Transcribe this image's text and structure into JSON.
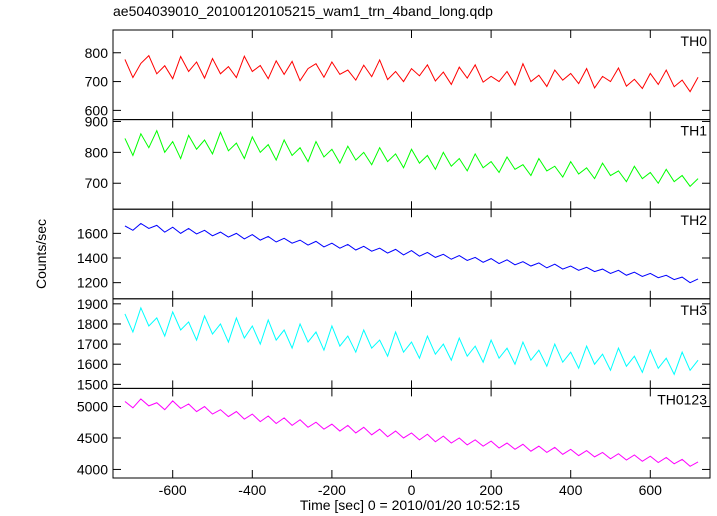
{
  "chart_data": {
    "type": "line",
    "title": "ae504039010_20100120105215_wam1_trn_4band_long.qdp",
    "x_label": "Time [sec] 0 = 2010/01/20 10:52:15",
    "y_label": "Counts/sec",
    "xlim": [
      -750,
      750
    ],
    "xticks": [
      -600,
      -400,
      -200,
      0,
      200,
      400,
      600
    ],
    "x": [
      -720,
      -700,
      -680,
      -660,
      -640,
      -620,
      -600,
      -580,
      -560,
      -540,
      -520,
      -500,
      -480,
      -460,
      -440,
      -420,
      -400,
      -380,
      -360,
      -340,
      -320,
      -300,
      -280,
      -260,
      -240,
      -220,
      -200,
      -180,
      -160,
      -140,
      -120,
      -100,
      -80,
      -60,
      -40,
      -20,
      0,
      20,
      40,
      60,
      80,
      100,
      120,
      140,
      160,
      180,
      200,
      220,
      240,
      260,
      280,
      300,
      320,
      340,
      360,
      380,
      400,
      420,
      440,
      460,
      480,
      500,
      520,
      540,
      560,
      580,
      600,
      620,
      640,
      660,
      680,
      700,
      720
    ],
    "series": [
      {
        "name": "TH0",
        "color": "#ff0000",
        "ylim": [
          568,
          879
        ],
        "yticks": [
          600,
          700,
          800
        ],
        "values": [
          777,
          714,
          763,
          790,
          727,
          755,
          710,
          787,
          735,
          768,
          712,
          780,
          727,
          752,
          714,
          788,
          735,
          756,
          710,
          772,
          725,
          770,
          703,
          745,
          762,
          715,
          768,
          725,
          740,
          705,
          757,
          717,
          775,
          707,
          735,
          700,
          745,
          720,
          758,
          702,
          733,
          690,
          750,
          712,
          758,
          698,
          718,
          700,
          735,
          688,
          762,
          700,
          722,
          683,
          740,
          705,
          728,
          693,
          745,
          678,
          718,
          700,
          747,
          684,
          708,
          676,
          728,
          690,
          740,
          682,
          705,
          665,
          715
        ]
      },
      {
        "name": "TH1",
        "color": "#00ff00",
        "ylim": [
          616,
          906
        ],
        "yticks": [
          700,
          800,
          900
        ],
        "values": [
          845,
          790,
          860,
          815,
          870,
          800,
          835,
          780,
          855,
          810,
          840,
          795,
          865,
          805,
          830,
          780,
          850,
          800,
          825,
          775,
          840,
          790,
          815,
          770,
          835,
          785,
          810,
          765,
          820,
          775,
          800,
          760,
          815,
          770,
          795,
          750,
          810,
          765,
          790,
          745,
          800,
          755,
          780,
          740,
          795,
          750,
          770,
          735,
          785,
          745,
          760,
          725,
          780,
          740,
          755,
          720,
          770,
          730,
          750,
          715,
          765,
          725,
          740,
          705,
          755,
          715,
          735,
          700,
          745,
          705,
          725,
          690,
          715
        ]
      },
      {
        "name": "TH2",
        "color": "#0000ff",
        "ylim": [
          1069,
          1796
        ],
        "yticks": [
          1200,
          1400,
          1600
        ],
        "values": [
          1660,
          1625,
          1680,
          1640,
          1665,
          1610,
          1650,
          1600,
          1640,
          1595,
          1625,
          1580,
          1610,
          1570,
          1600,
          1555,
          1590,
          1545,
          1575,
          1530,
          1560,
          1520,
          1545,
          1505,
          1535,
          1490,
          1520,
          1480,
          1510,
          1465,
          1495,
          1455,
          1480,
          1440,
          1470,
          1425,
          1460,
          1415,
          1445,
          1405,
          1430,
          1390,
          1420,
          1380,
          1405,
          1365,
          1395,
          1355,
          1385,
          1345,
          1370,
          1335,
          1360,
          1320,
          1350,
          1310,
          1335,
          1300,
          1325,
          1290,
          1310,
          1275,
          1300,
          1260,
          1285,
          1250,
          1275,
          1240,
          1260,
          1225,
          1245,
          1200,
          1230
        ]
      },
      {
        "name": "TH3",
        "color": "#00ffff",
        "ylim": [
          1480,
          1925
        ],
        "yticks": [
          1500,
          1600,
          1700,
          1800,
          1900
        ],
        "values": [
          1850,
          1760,
          1880,
          1790,
          1830,
          1740,
          1860,
          1770,
          1810,
          1720,
          1840,
          1750,
          1800,
          1710,
          1830,
          1730,
          1790,
          1700,
          1820,
          1720,
          1770,
          1680,
          1800,
          1710,
          1760,
          1670,
          1790,
          1690,
          1740,
          1660,
          1770,
          1680,
          1720,
          1640,
          1760,
          1660,
          1710,
          1630,
          1740,
          1650,
          1700,
          1620,
          1730,
          1640,
          1690,
          1610,
          1720,
          1630,
          1680,
          1600,
          1710,
          1620,
          1670,
          1590,
          1700,
          1610,
          1660,
          1580,
          1690,
          1600,
          1650,
          1570,
          1680,
          1590,
          1640,
          1560,
          1670,
          1580,
          1630,
          1550,
          1660,
          1570,
          1620
        ]
      },
      {
        "name": "TH0123",
        "color": "#ff00ff",
        "ylim": [
          3864,
          5288
        ],
        "yticks": [
          4000,
          4500,
          5000
        ],
        "values": [
          5080,
          4980,
          5120,
          5010,
          5060,
          4950,
          5090,
          4970,
          5040,
          4920,
          5000,
          4880,
          4950,
          4840,
          4920,
          4800,
          4880,
          4760,
          4850,
          4730,
          4820,
          4700,
          4790,
          4670,
          4750,
          4640,
          4720,
          4610,
          4700,
          4580,
          4670,
          4550,
          4640,
          4520,
          4610,
          4500,
          4580,
          4470,
          4560,
          4440,
          4530,
          4420,
          4500,
          4390,
          4470,
          4370,
          4450,
          4340,
          4420,
          4320,
          4400,
          4290,
          4370,
          4270,
          4350,
          4240,
          4320,
          4220,
          4300,
          4200,
          4270,
          4170,
          4250,
          4150,
          4230,
          4130,
          4210,
          4110,
          4190,
          4090,
          4160,
          4050,
          4120
        ]
      }
    ]
  }
}
